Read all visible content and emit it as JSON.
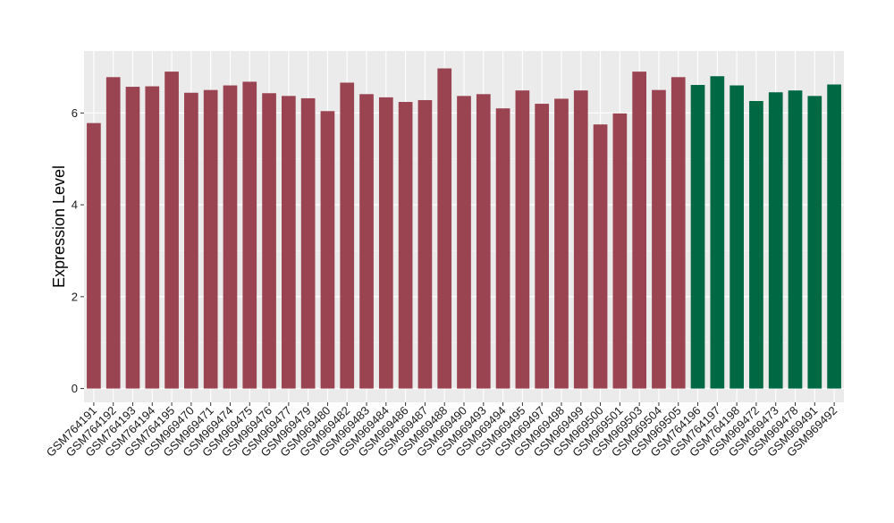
{
  "chart_data": {
    "type": "bar",
    "title": "",
    "xlabel": "",
    "ylabel": "Expression Level",
    "ylim": [
      -0.3,
      7.35
    ],
    "yticks": [
      0,
      2,
      4,
      6
    ],
    "grid": true,
    "categories": [
      "GSM764191",
      "GSM764192",
      "GSM764193",
      "GSM764194",
      "GSM764195",
      "GSM969470",
      "GSM969471",
      "GSM969474",
      "GSM969475",
      "GSM969476",
      "GSM969477",
      "GSM969479",
      "GSM969480",
      "GSM969482",
      "GSM969483",
      "GSM969484",
      "GSM969486",
      "GSM969487",
      "GSM969488",
      "GSM969490",
      "GSM969493",
      "GSM969494",
      "GSM969495",
      "GSM969497",
      "GSM969498",
      "GSM969499",
      "GSM969500",
      "GSM969501",
      "GSM969503",
      "GSM969504",
      "GSM969505",
      "GSM764196",
      "GSM764197",
      "GSM764198",
      "GSM969472",
      "GSM969473",
      "GSM969478",
      "GSM969491",
      "GSM969492"
    ],
    "values": [
      5.78,
      6.78,
      6.57,
      6.58,
      6.9,
      6.44,
      6.5,
      6.6,
      6.68,
      6.43,
      6.37,
      6.32,
      6.04,
      6.66,
      6.41,
      6.34,
      6.24,
      6.28,
      6.97,
      6.37,
      6.41,
      6.1,
      6.49,
      6.2,
      6.31,
      6.49,
      5.75,
      5.99,
      6.9,
      6.5,
      6.78,
      6.61,
      6.8,
      6.6,
      6.26,
      6.45,
      6.49,
      6.37,
      6.62
    ],
    "groups": [
      "a",
      "a",
      "a",
      "a",
      "a",
      "a",
      "a",
      "a",
      "a",
      "a",
      "a",
      "a",
      "a",
      "a",
      "a",
      "a",
      "a",
      "a",
      "a",
      "a",
      "a",
      "a",
      "a",
      "a",
      "a",
      "a",
      "a",
      "a",
      "a",
      "a",
      "a",
      "b",
      "b",
      "b",
      "b",
      "b",
      "b",
      "b",
      "b"
    ],
    "colors": {
      "a": "#9a4351",
      "b": "#006843",
      "panel": "#ebebeb",
      "grid_major": "#ffffff",
      "grid_minor": "#f5f5f5",
      "text": "#000000",
      "tick_label": "#1a1a1a"
    }
  }
}
